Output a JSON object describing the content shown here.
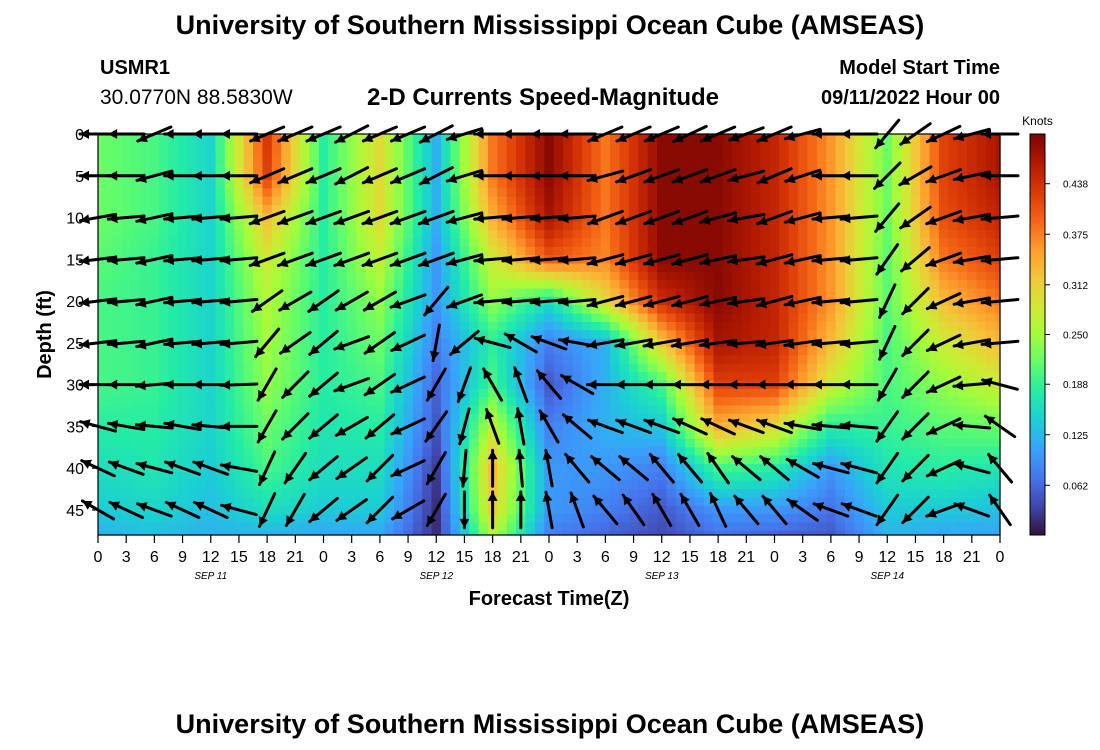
{
  "header": {
    "title": "University of Southern Mississippi Ocean Cube (AMSEAS)",
    "station_id": "USMR1",
    "coordinates": "30.0770N  88.5830W",
    "subtitle": "2-D Currents Speed-Magnitude",
    "model_start_label": "Model Start Time",
    "model_start_value": "09/11/2022 Hour 00"
  },
  "footer": {
    "title": "University of Southern Mississippi Ocean Cube (AMSEAS)"
  },
  "chart_data": {
    "type": "heatmap",
    "xlabel": "Forecast Time(Z)",
    "ylabel": "Depth (ft)",
    "x_tick_labels": [
      "0",
      "3",
      "6",
      "9",
      "12",
      "15",
      "18",
      "21",
      "0",
      "3",
      "6",
      "9",
      "12",
      "15",
      "18",
      "21",
      "0",
      "3",
      "6",
      "9",
      "12",
      "15",
      "18",
      "21",
      "0",
      "3",
      "6",
      "9",
      "12",
      "15",
      "18",
      "21",
      "0"
    ],
    "date_labels": [
      {
        "label": "SEP 11",
        "hour": 12
      },
      {
        "label": "SEP 12",
        "hour": 36
      },
      {
        "label": "SEP 13",
        "hour": 60
      },
      {
        "label": "SEP 14",
        "hour": 84
      }
    ],
    "x_range_hours": [
      0,
      96
    ],
    "y_range_ft": [
      0,
      48
    ],
    "y_ticks": [
      "0",
      "5",
      "10",
      "15",
      "20",
      "25",
      "30",
      "35",
      "40",
      "45"
    ],
    "colorbar": {
      "title": "Knots",
      "range": [
        0.0,
        0.5
      ],
      "tick_labels": [
        "0.062",
        "0.125",
        "0.188",
        "0.250",
        "0.312",
        "0.375",
        "0.438"
      ],
      "colors": [
        "#30123b",
        "#4145ab",
        "#4675ed",
        "#39a2fc",
        "#1bcfd4",
        "#24eca6",
        "#61fc6c",
        "#a4fc3b",
        "#d1e834",
        "#f3c63a",
        "#fe9b2d",
        "#f36315",
        "#d93806",
        "#b11901",
        "#7a0403"
      ]
    },
    "depth_levels_ft": [
      0,
      5,
      10,
      15,
      20,
      25,
      30,
      35,
      40,
      45,
      48
    ],
    "time_points_hours": [
      0,
      6,
      12,
      18,
      24,
      30,
      36,
      42,
      48,
      54,
      60,
      66,
      72,
      78,
      84,
      90,
      96
    ],
    "speed_knots": [
      [
        0.22,
        0.2,
        0.15,
        0.43,
        0.18,
        0.3,
        0.12,
        0.38,
        0.49,
        0.38,
        0.49,
        0.49,
        0.45,
        0.36,
        0.22,
        0.42,
        0.47
      ],
      [
        0.22,
        0.2,
        0.15,
        0.42,
        0.18,
        0.3,
        0.12,
        0.38,
        0.49,
        0.38,
        0.49,
        0.49,
        0.45,
        0.36,
        0.22,
        0.42,
        0.47
      ],
      [
        0.22,
        0.2,
        0.15,
        0.33,
        0.18,
        0.3,
        0.12,
        0.34,
        0.47,
        0.38,
        0.49,
        0.49,
        0.45,
        0.36,
        0.22,
        0.41,
        0.45
      ],
      [
        0.21,
        0.19,
        0.15,
        0.28,
        0.18,
        0.27,
        0.1,
        0.28,
        0.4,
        0.37,
        0.49,
        0.49,
        0.45,
        0.36,
        0.21,
        0.38,
        0.42
      ],
      [
        0.2,
        0.19,
        0.15,
        0.26,
        0.18,
        0.24,
        0.1,
        0.24,
        0.16,
        0.3,
        0.44,
        0.49,
        0.45,
        0.36,
        0.21,
        0.33,
        0.38
      ],
      [
        0.2,
        0.19,
        0.15,
        0.25,
        0.18,
        0.22,
        0.08,
        0.18,
        0.08,
        0.12,
        0.32,
        0.47,
        0.45,
        0.33,
        0.2,
        0.28,
        0.33
      ],
      [
        0.2,
        0.19,
        0.15,
        0.24,
        0.18,
        0.2,
        0.06,
        0.2,
        0.05,
        0.12,
        0.2,
        0.42,
        0.42,
        0.28,
        0.2,
        0.24,
        0.28
      ],
      [
        0.18,
        0.18,
        0.15,
        0.22,
        0.17,
        0.18,
        0.05,
        0.27,
        0.08,
        0.12,
        0.14,
        0.34,
        0.3,
        0.18,
        0.19,
        0.21,
        0.22
      ],
      [
        0.16,
        0.17,
        0.14,
        0.2,
        0.16,
        0.16,
        0.03,
        0.33,
        0.1,
        0.1,
        0.08,
        0.2,
        0.18,
        0.1,
        0.17,
        0.18,
        0.17
      ],
      [
        0.14,
        0.15,
        0.13,
        0.16,
        0.14,
        0.14,
        0.02,
        0.31,
        0.1,
        0.08,
        0.05,
        0.1,
        0.1,
        0.07,
        0.14,
        0.14,
        0.13
      ],
      [
        0.12,
        0.13,
        0.12,
        0.12,
        0.11,
        0.11,
        0.02,
        0.26,
        0.08,
        0.06,
        0.04,
        0.07,
        0.06,
        0.05,
        0.12,
        0.11,
        0.11
      ]
    ],
    "vector_columns_hours": [
      0,
      3,
      6,
      9,
      12,
      15,
      18,
      21,
      24,
      27,
      30,
      33,
      36,
      39,
      42,
      45,
      48,
      51,
      54,
      57,
      60,
      63,
      66,
      69,
      72,
      75,
      78,
      81,
      84,
      87,
      90,
      93,
      96
    ],
    "vector_rows_ft": [
      0,
      5,
      10,
      15,
      20,
      25,
      30,
      35,
      40,
      45
    ],
    "vector_direction_deg": [
      [
        270,
        270,
        247,
        270,
        270,
        270,
        247,
        247,
        247,
        243,
        247,
        247,
        243,
        253,
        270,
        270,
        270,
        270,
        247,
        247,
        247,
        245,
        247,
        250,
        247,
        255,
        270,
        270,
        220,
        235,
        245,
        255,
        270
      ],
      [
        270,
        270,
        255,
        270,
        270,
        270,
        247,
        247,
        247,
        243,
        247,
        247,
        243,
        253,
        270,
        270,
        270,
        270,
        255,
        250,
        250,
        250,
        250,
        255,
        247,
        252,
        270,
        270,
        225,
        240,
        250,
        258,
        270
      ],
      [
        260,
        265,
        258,
        265,
        265,
        265,
        250,
        250,
        250,
        250,
        250,
        250,
        250,
        255,
        265,
        265,
        265,
        265,
        250,
        250,
        250,
        250,
        255,
        260,
        250,
        255,
        265,
        265,
        220,
        235,
        250,
        260,
        265
      ],
      [
        263,
        265,
        258,
        265,
        265,
        265,
        250,
        250,
        250,
        250,
        250,
        250,
        250,
        255,
        265,
        265,
        265,
        265,
        255,
        255,
        255,
        255,
        258,
        262,
        255,
        258,
        265,
        265,
        215,
        230,
        250,
        260,
        265
      ],
      [
        263,
        265,
        258,
        265,
        265,
        265,
        235,
        240,
        235,
        240,
        240,
        250,
        220,
        250,
        265,
        265,
        265,
        265,
        255,
        255,
        255,
        255,
        258,
        262,
        255,
        258,
        265,
        265,
        205,
        225,
        245,
        260,
        265
      ],
      [
        263,
        265,
        258,
        265,
        265,
        265,
        220,
        235,
        230,
        250,
        235,
        245,
        190,
        230,
        285,
        300,
        290,
        280,
        260,
        260,
        260,
        260,
        262,
        265,
        262,
        262,
        265,
        265,
        205,
        225,
        245,
        260,
        265
      ],
      [
        270,
        270,
        265,
        270,
        270,
        268,
        210,
        225,
        230,
        250,
        235,
        245,
        210,
        200,
        330,
        340,
        320,
        300,
        270,
        270,
        270,
        270,
        270,
        270,
        270,
        270,
        270,
        270,
        210,
        225,
        245,
        265,
        285
      ],
      [
        285,
        280,
        275,
        280,
        275,
        270,
        210,
        225,
        230,
        240,
        230,
        245,
        215,
        195,
        340,
        350,
        330,
        310,
        290,
        290,
        290,
        295,
        295,
        290,
        290,
        280,
        275,
        275,
        215,
        225,
        245,
        275,
        305
      ],
      [
        295,
        290,
        285,
        290,
        290,
        280,
        205,
        215,
        230,
        235,
        225,
        245,
        210,
        185,
        0,
        355,
        350,
        320,
        310,
        310,
        320,
        320,
        325,
        310,
        310,
        300,
        285,
        285,
        215,
        225,
        245,
        285,
        320
      ],
      [
        300,
        295,
        290,
        295,
        295,
        285,
        205,
        210,
        230,
        235,
        225,
        240,
        210,
        180,
        0,
        0,
        350,
        340,
        320,
        325,
        330,
        330,
        335,
        320,
        320,
        305,
        290,
        290,
        215,
        225,
        250,
        290,
        325
      ]
    ]
  }
}
